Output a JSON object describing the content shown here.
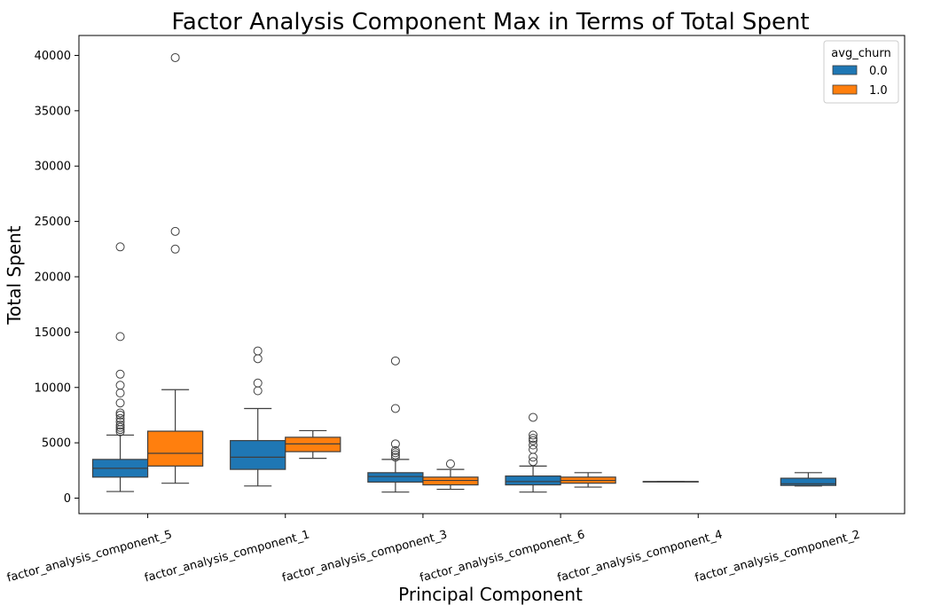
{
  "chart_data": {
    "type": "box",
    "title": "Factor Analysis Component Max in Terms of Total Spent",
    "xlabel": "Principal Component",
    "ylabel": "Total Spent",
    "ylim": [
      -1400,
      41800
    ],
    "yticks": [
      0,
      5000,
      10000,
      15000,
      20000,
      25000,
      30000,
      35000,
      40000
    ],
    "categories": [
      "factor_analysis_component_5",
      "factor_analysis_component_1",
      "factor_analysis_component_3",
      "factor_analysis_component_6",
      "factor_analysis_component_4",
      "factor_analysis_component_2"
    ],
    "legend": {
      "title": "avg_churn",
      "position": "top-right"
    },
    "series": [
      {
        "name": "0.0",
        "color": "#1f77b4",
        "boxes": [
          {
            "category": "factor_analysis_component_5",
            "whisker_low": 600,
            "q1": 1900,
            "median": 2700,
            "q3": 3500,
            "whisker_high": 5700,
            "outliers": [
              6000,
              6200,
              6400,
              6600,
              6900,
              7200,
              7500,
              7700,
              8600,
              9500,
              10200,
              11200,
              14600,
              22700
            ]
          },
          {
            "category": "factor_analysis_component_1",
            "whisker_low": 1100,
            "q1": 2600,
            "median": 3700,
            "q3": 5200,
            "whisker_high": 8100,
            "outliers": [
              9700,
              10400,
              12600,
              13300
            ]
          },
          {
            "category": "factor_analysis_component_3",
            "whisker_low": 550,
            "q1": 1450,
            "median": 1950,
            "q3": 2300,
            "whisker_high": 3500,
            "outliers": [
              3700,
              3900,
              4100,
              4300,
              4900,
              8100,
              12400
            ]
          },
          {
            "category": "factor_analysis_component_6",
            "whisker_low": 550,
            "q1": 1200,
            "median": 1500,
            "q3": 2000,
            "whisker_high": 2900,
            "outliers": [
              3300,
              3700,
              4400,
              4800,
              5200,
              5400,
              5700,
              7300
            ]
          },
          {
            "category": "factor_analysis_component_4",
            "whisker_low": 1500,
            "q1": 1500,
            "median": 1500,
            "q3": 1500,
            "whisker_high": 1500,
            "outliers": []
          },
          {
            "category": "factor_analysis_component_2",
            "whisker_low": 1100,
            "q1": 1150,
            "median": 1300,
            "q3": 1800,
            "whisker_high": 2300,
            "outliers": []
          }
        ]
      },
      {
        "name": "1.0",
        "color": "#ff7f0e",
        "boxes": [
          {
            "category": "factor_analysis_component_5",
            "whisker_low": 1350,
            "q1": 2900,
            "median": 4050,
            "q3": 6050,
            "whisker_high": 9800,
            "outliers": [
              22500,
              24100,
              39800
            ]
          },
          {
            "category": "factor_analysis_component_1",
            "whisker_low": 3600,
            "q1": 4200,
            "median": 4900,
            "q3": 5500,
            "whisker_high": 6100,
            "outliers": []
          },
          {
            "category": "factor_analysis_component_3",
            "whisker_low": 800,
            "q1": 1200,
            "median": 1600,
            "q3": 1900,
            "whisker_high": 2600,
            "outliers": [
              3100
            ]
          },
          {
            "category": "factor_analysis_component_6",
            "whisker_low": 1000,
            "q1": 1350,
            "median": 1600,
            "q3": 1900,
            "whisker_high": 2300,
            "outliers": []
          }
        ]
      }
    ]
  }
}
